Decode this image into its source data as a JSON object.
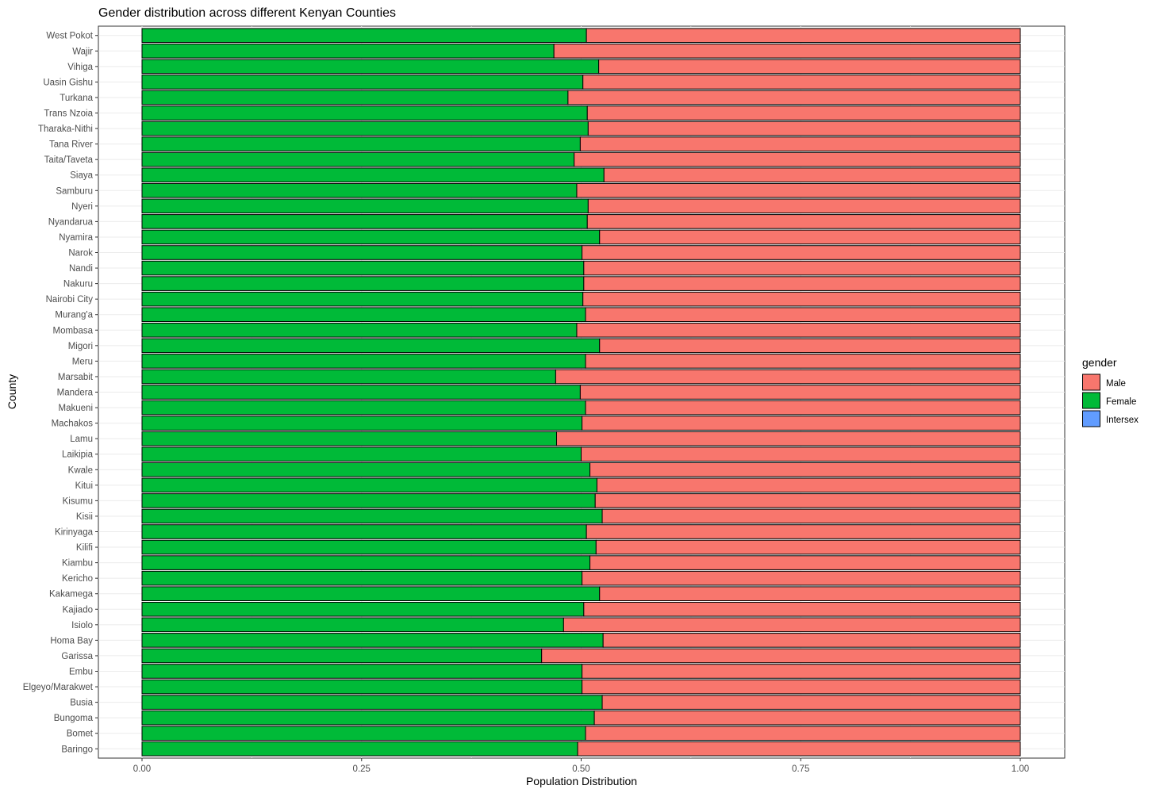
{
  "chart_data": {
    "type": "bar",
    "orientation": "horizontal",
    "stacked": true,
    "title": "Gender distribution across different Kenyan Counties",
    "xlabel": "Population Distribution",
    "ylabel": "County",
    "xlim": [
      0,
      1
    ],
    "x_ticks": [
      "0.00",
      "0.25",
      "0.50",
      "0.75",
      "1.00"
    ],
    "grid": true,
    "legend_position": "right",
    "legend_title": "gender",
    "legend": [
      {
        "name": "Male",
        "color": "#F8766D"
      },
      {
        "name": "Female",
        "color": "#00BA38"
      },
      {
        "name": "Intersex",
        "color": "#619CFF"
      }
    ],
    "categories": [
      "West Pokot",
      "Wajir",
      "Vihiga",
      "Uasin Gishu",
      "Turkana",
      "Trans Nzoia",
      "Tharaka-Nithi",
      "Tana River",
      "Taita/Taveta",
      "Siaya",
      "Samburu",
      "Nyeri",
      "Nyandarua",
      "Nyamira",
      "Narok",
      "Nandi",
      "Nakuru",
      "Nairobi City",
      "Murang'a",
      "Mombasa",
      "Migori",
      "Meru",
      "Marsabit",
      "Mandera",
      "Makueni",
      "Machakos",
      "Lamu",
      "Laikipia",
      "Kwale",
      "Kitui",
      "Kisumu",
      "Kisii",
      "Kirinyaga",
      "Kilifi",
      "Kiambu",
      "Kericho",
      "Kakamega",
      "Kajiado",
      "Isiolo",
      "Homa Bay",
      "Garissa",
      "Embu",
      "Elgeyo/Marakwet",
      "Busia",
      "Bungoma",
      "Bomet",
      "Baringo"
    ],
    "series": [
      {
        "name": "Female",
        "color": "#00BA38",
        "values": [
          0.506,
          0.469,
          0.52,
          0.502,
          0.485,
          0.507,
          0.508,
          0.499,
          0.492,
          0.526,
          0.495,
          0.508,
          0.507,
          0.521,
          0.501,
          0.503,
          0.503,
          0.502,
          0.505,
          0.495,
          0.521,
          0.505,
          0.471,
          0.499,
          0.505,
          0.501,
          0.472,
          0.5,
          0.51,
          0.518,
          0.516,
          0.524,
          0.506,
          0.517,
          0.51,
          0.501,
          0.521,
          0.503,
          0.48,
          0.525,
          0.455,
          0.501,
          0.501,
          0.524,
          0.515,
          0.505,
          0.496
        ]
      },
      {
        "name": "Male",
        "color": "#F8766D",
        "values": [
          0.494,
          0.531,
          0.48,
          0.498,
          0.515,
          0.493,
          0.492,
          0.501,
          0.508,
          0.474,
          0.505,
          0.492,
          0.493,
          0.479,
          0.499,
          0.497,
          0.497,
          0.498,
          0.495,
          0.505,
          0.479,
          0.495,
          0.529,
          0.501,
          0.495,
          0.499,
          0.528,
          0.5,
          0.49,
          0.482,
          0.484,
          0.476,
          0.494,
          0.483,
          0.49,
          0.499,
          0.479,
          0.497,
          0.52,
          0.475,
          0.545,
          0.499,
          0.499,
          0.476,
          0.485,
          0.495,
          0.504
        ]
      },
      {
        "name": "Intersex",
        "color": "#619CFF",
        "values": [
          0,
          0,
          0,
          0,
          0,
          0,
          0,
          0,
          0,
          0,
          0,
          0,
          0,
          0,
          0,
          0,
          0,
          0,
          0,
          0,
          0,
          0,
          0,
          0,
          0,
          0,
          0,
          0,
          0,
          0,
          0,
          0,
          0,
          0,
          0,
          0,
          0,
          0,
          0,
          0,
          0,
          0,
          0,
          0,
          0,
          0,
          0
        ]
      }
    ]
  }
}
